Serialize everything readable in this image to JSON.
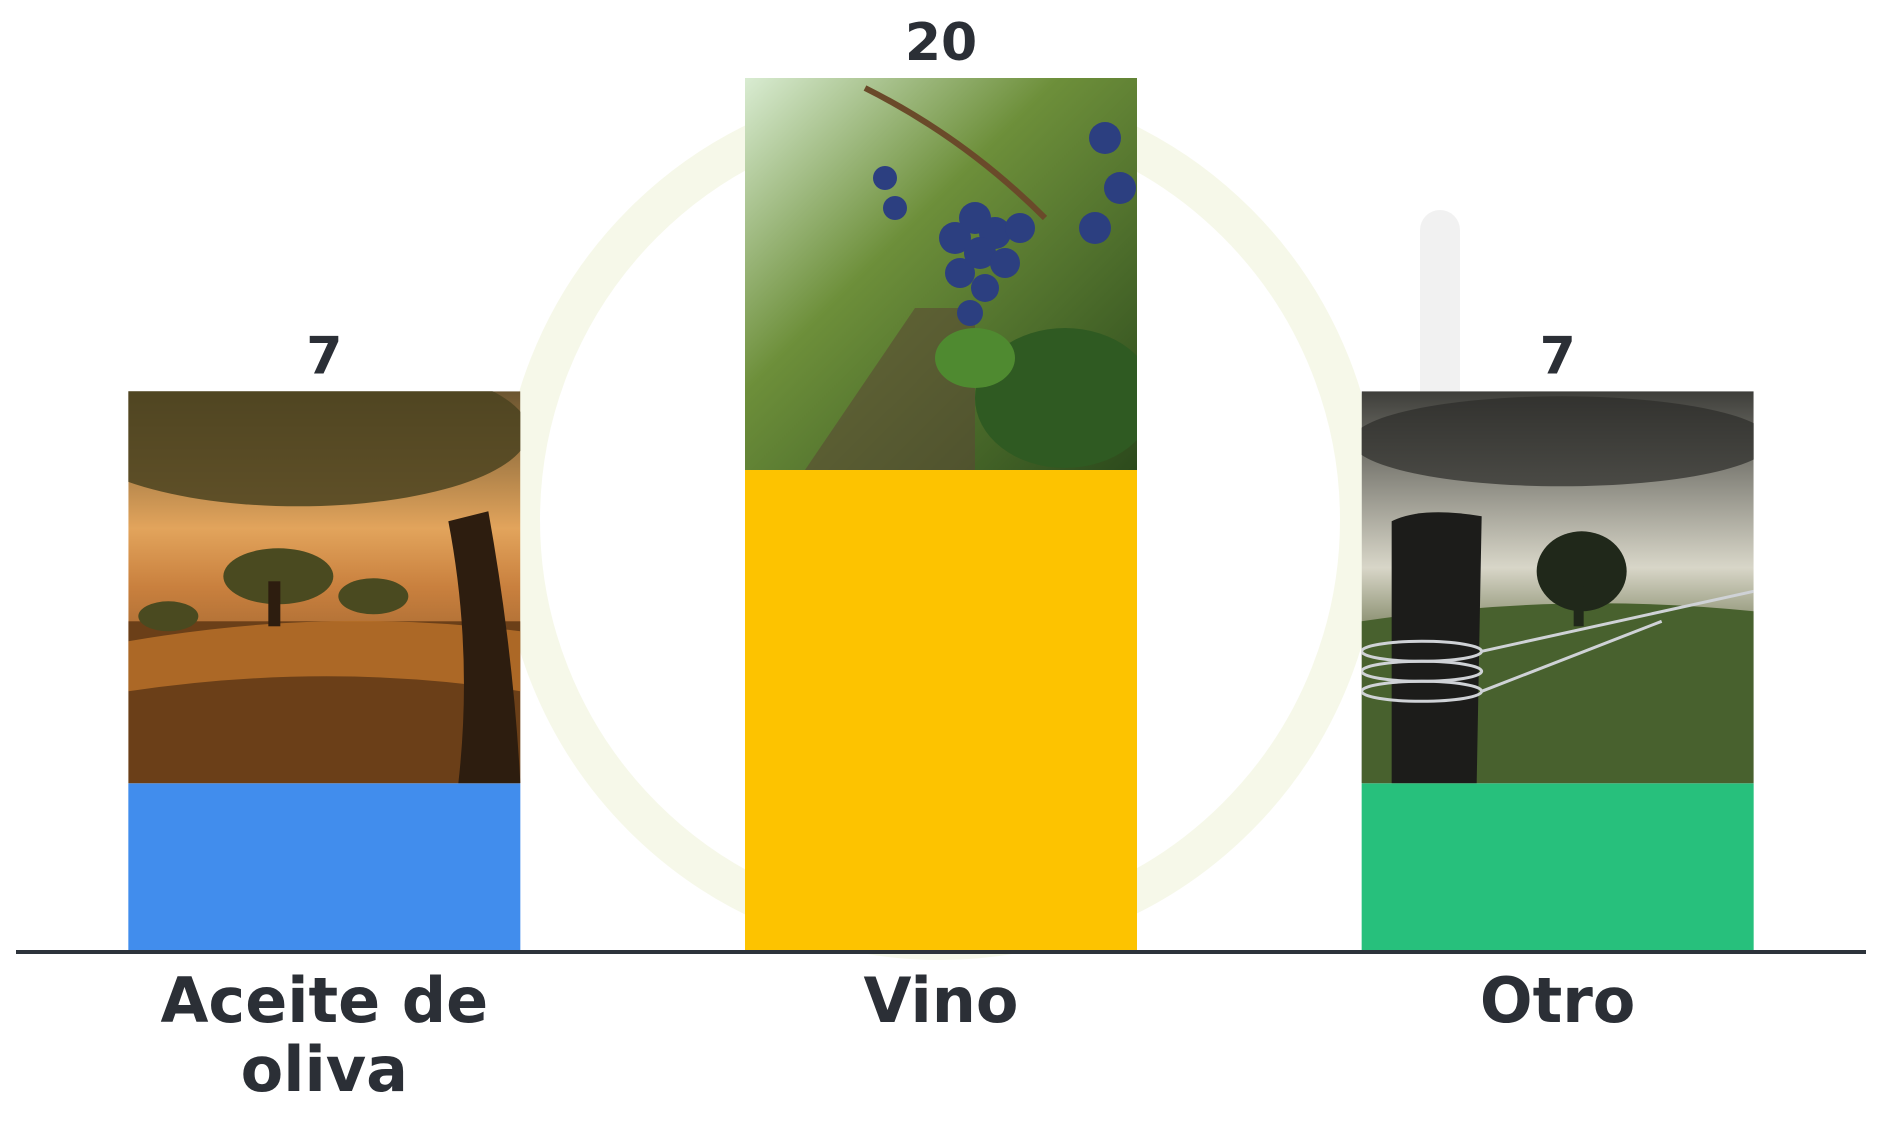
{
  "chart_data": {
    "type": "bar",
    "categories": [
      "Aceite de oliva",
      "Vino",
      "Otro"
    ],
    "values": [
      7,
      20,
      7
    ],
    "colors": [
      "#418ded",
      "#fdc300",
      "#27c07c"
    ],
    "ylim": [
      0,
      20
    ]
  }
}
